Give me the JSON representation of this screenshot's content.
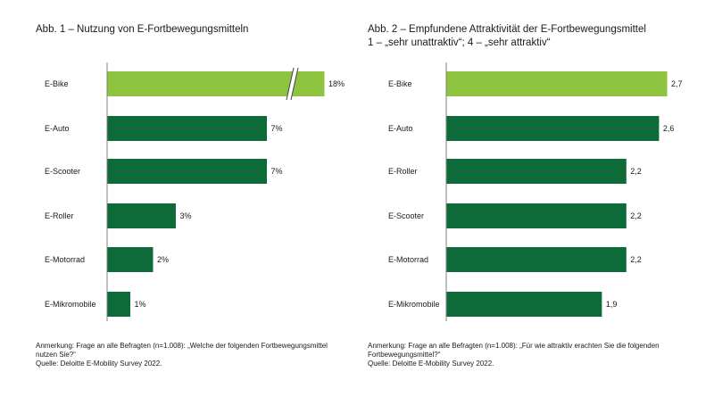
{
  "chart_data": [
    {
      "type": "bar",
      "orientation": "horizontal",
      "title": "Abb. 1 – Nutzung von E-Fortbewegungsmitteln",
      "categories": [
        "E-Bike",
        "E-Auto",
        "E-Scooter",
        "E-Roller",
        "E-Motorrad",
        "E-Mikromobile"
      ],
      "values": [
        18,
        7,
        7,
        3,
        2,
        1
      ],
      "value_labels": [
        "18%",
        "7%",
        "7%",
        "3%",
        "2%",
        "1%"
      ],
      "axis_break": "E-Bike",
      "highlight": "E-Bike",
      "note": "Anmerkung: Frage an alle Befragten (n=1.008): „Welche der folgenden Fortbewegungsmittel nutzen Sie?“",
      "source": "Quelle: Deloitte E-Mobility Survey 2022."
    },
    {
      "type": "bar",
      "orientation": "horizontal",
      "title": "Abb. 2 – Empfundene Attraktivität der E-Fortbewegungsmittel",
      "subtitle": "1 – „sehr unattraktiv“; 4 – „sehr attraktiv“",
      "categories": [
        "E-Bike",
        "E-Auto",
        "E-Roller",
        "E-Scooter",
        "E-Motorrad",
        "E-Mikromobile"
      ],
      "values": [
        2.7,
        2.6,
        2.2,
        2.2,
        2.2,
        1.9
      ],
      "value_labels": [
        "2,7",
        "2,6",
        "2,2",
        "2,2",
        "2,2",
        "1,9"
      ],
      "highlight": "E-Bike",
      "note": "Anmerkung: Frage an alle Befragten (n=1.008): „Für wie attraktiv erachten Sie die folgenden Fortbewegungsmittel?“",
      "source": "Quelle: Deloitte E-Mobility Survey 2022."
    }
  ],
  "colors": {
    "highlight": "#8dc33f",
    "bar": "#0d6b3a",
    "axis": "#7f7f7f"
  }
}
